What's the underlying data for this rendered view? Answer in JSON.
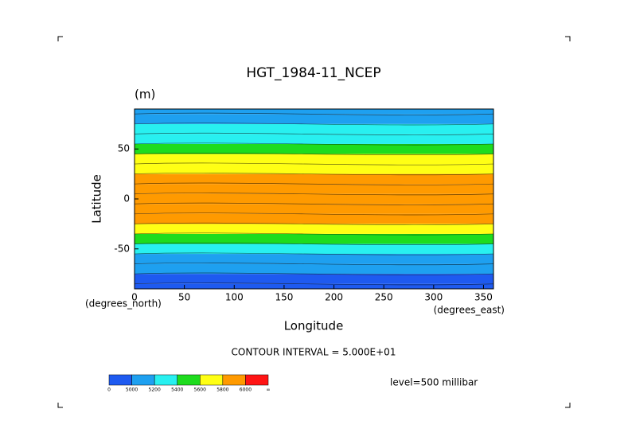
{
  "chart_data": {
    "type": "zonal-contour",
    "title": "HGT_1984-11_NCEP",
    "units": "(m)",
    "xlabel": "Longitude",
    "ylabel": "Latitude",
    "x_units": "(degrees_east)",
    "y_units": "(degrees_north)",
    "xlim": [
      0,
      360
    ],
    "ylim": [
      -90,
      90
    ],
    "xticks": [
      0,
      50,
      100,
      150,
      200,
      250,
      300,
      350
    ],
    "yticks": [
      -50,
      0,
      50
    ],
    "latitudes": [
      -90,
      -80,
      -70,
      -60,
      -50,
      -40,
      -30,
      -20,
      -10,
      0,
      10,
      20,
      30,
      40,
      50,
      60,
      70,
      80,
      90
    ],
    "values": [
      4950,
      4980,
      5050,
      5150,
      5300,
      5500,
      5720,
      5830,
      5860,
      5870,
      5870,
      5850,
      5760,
      5620,
      5480,
      5330,
      5220,
      5180,
      5170
    ],
    "contour_interval": "CONTOUR INTERVAL = 5.000E+01",
    "level": "level=500 millibar",
    "colorbar_levels": [
      0,
      5000,
      5200,
      5400,
      5600,
      5800,
      6000
    ],
    "colorbar_top_label": "∞",
    "colorbar_colors": [
      "#1e5af0",
      "#1ea0f0",
      "#28f0f0",
      "#1edc1e",
      "#ffff14",
      "#ff9a00",
      "#ff1414"
    ]
  }
}
